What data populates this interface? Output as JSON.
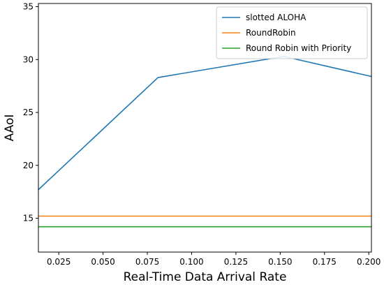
{
  "chart_data": {
    "type": "line",
    "title": "",
    "xlabel": "Real-Time Data Arrival Rate",
    "ylabel": "AAoI",
    "xlim": [
      0.0135,
      0.2015
    ],
    "ylim": [
      11.8,
      35.3
    ],
    "xticks": [
      0.025,
      0.05,
      0.075,
      0.1,
      0.125,
      0.15,
      0.175,
      0.2
    ],
    "xtick_labels": [
      "0.025",
      "0.050",
      "0.075",
      "0.100",
      "0.125",
      "0.150",
      "0.175",
      "0.200"
    ],
    "yticks": [
      15,
      20,
      25,
      30,
      35
    ],
    "ytick_labels": [
      "15",
      "20",
      "25",
      "30",
      "35"
    ],
    "grid": false,
    "legend_position": "top-right",
    "series": [
      {
        "name": "slotted ALOHA",
        "color": "#1f77b4",
        "x": [
          0.0135,
          0.081,
          0.152,
          0.2015
        ],
        "y": [
          17.7,
          28.3,
          30.3,
          28.4
        ]
      },
      {
        "name": "RoundRobin",
        "color": "#ff7f0e",
        "x": [
          0.0135,
          0.2015
        ],
        "y": [
          15.2,
          15.2
        ]
      },
      {
        "name": "Round Robin with Priority",
        "color": "#2ca02c",
        "x": [
          0.0135,
          0.2015
        ],
        "y": [
          14.2,
          14.2
        ]
      }
    ]
  }
}
